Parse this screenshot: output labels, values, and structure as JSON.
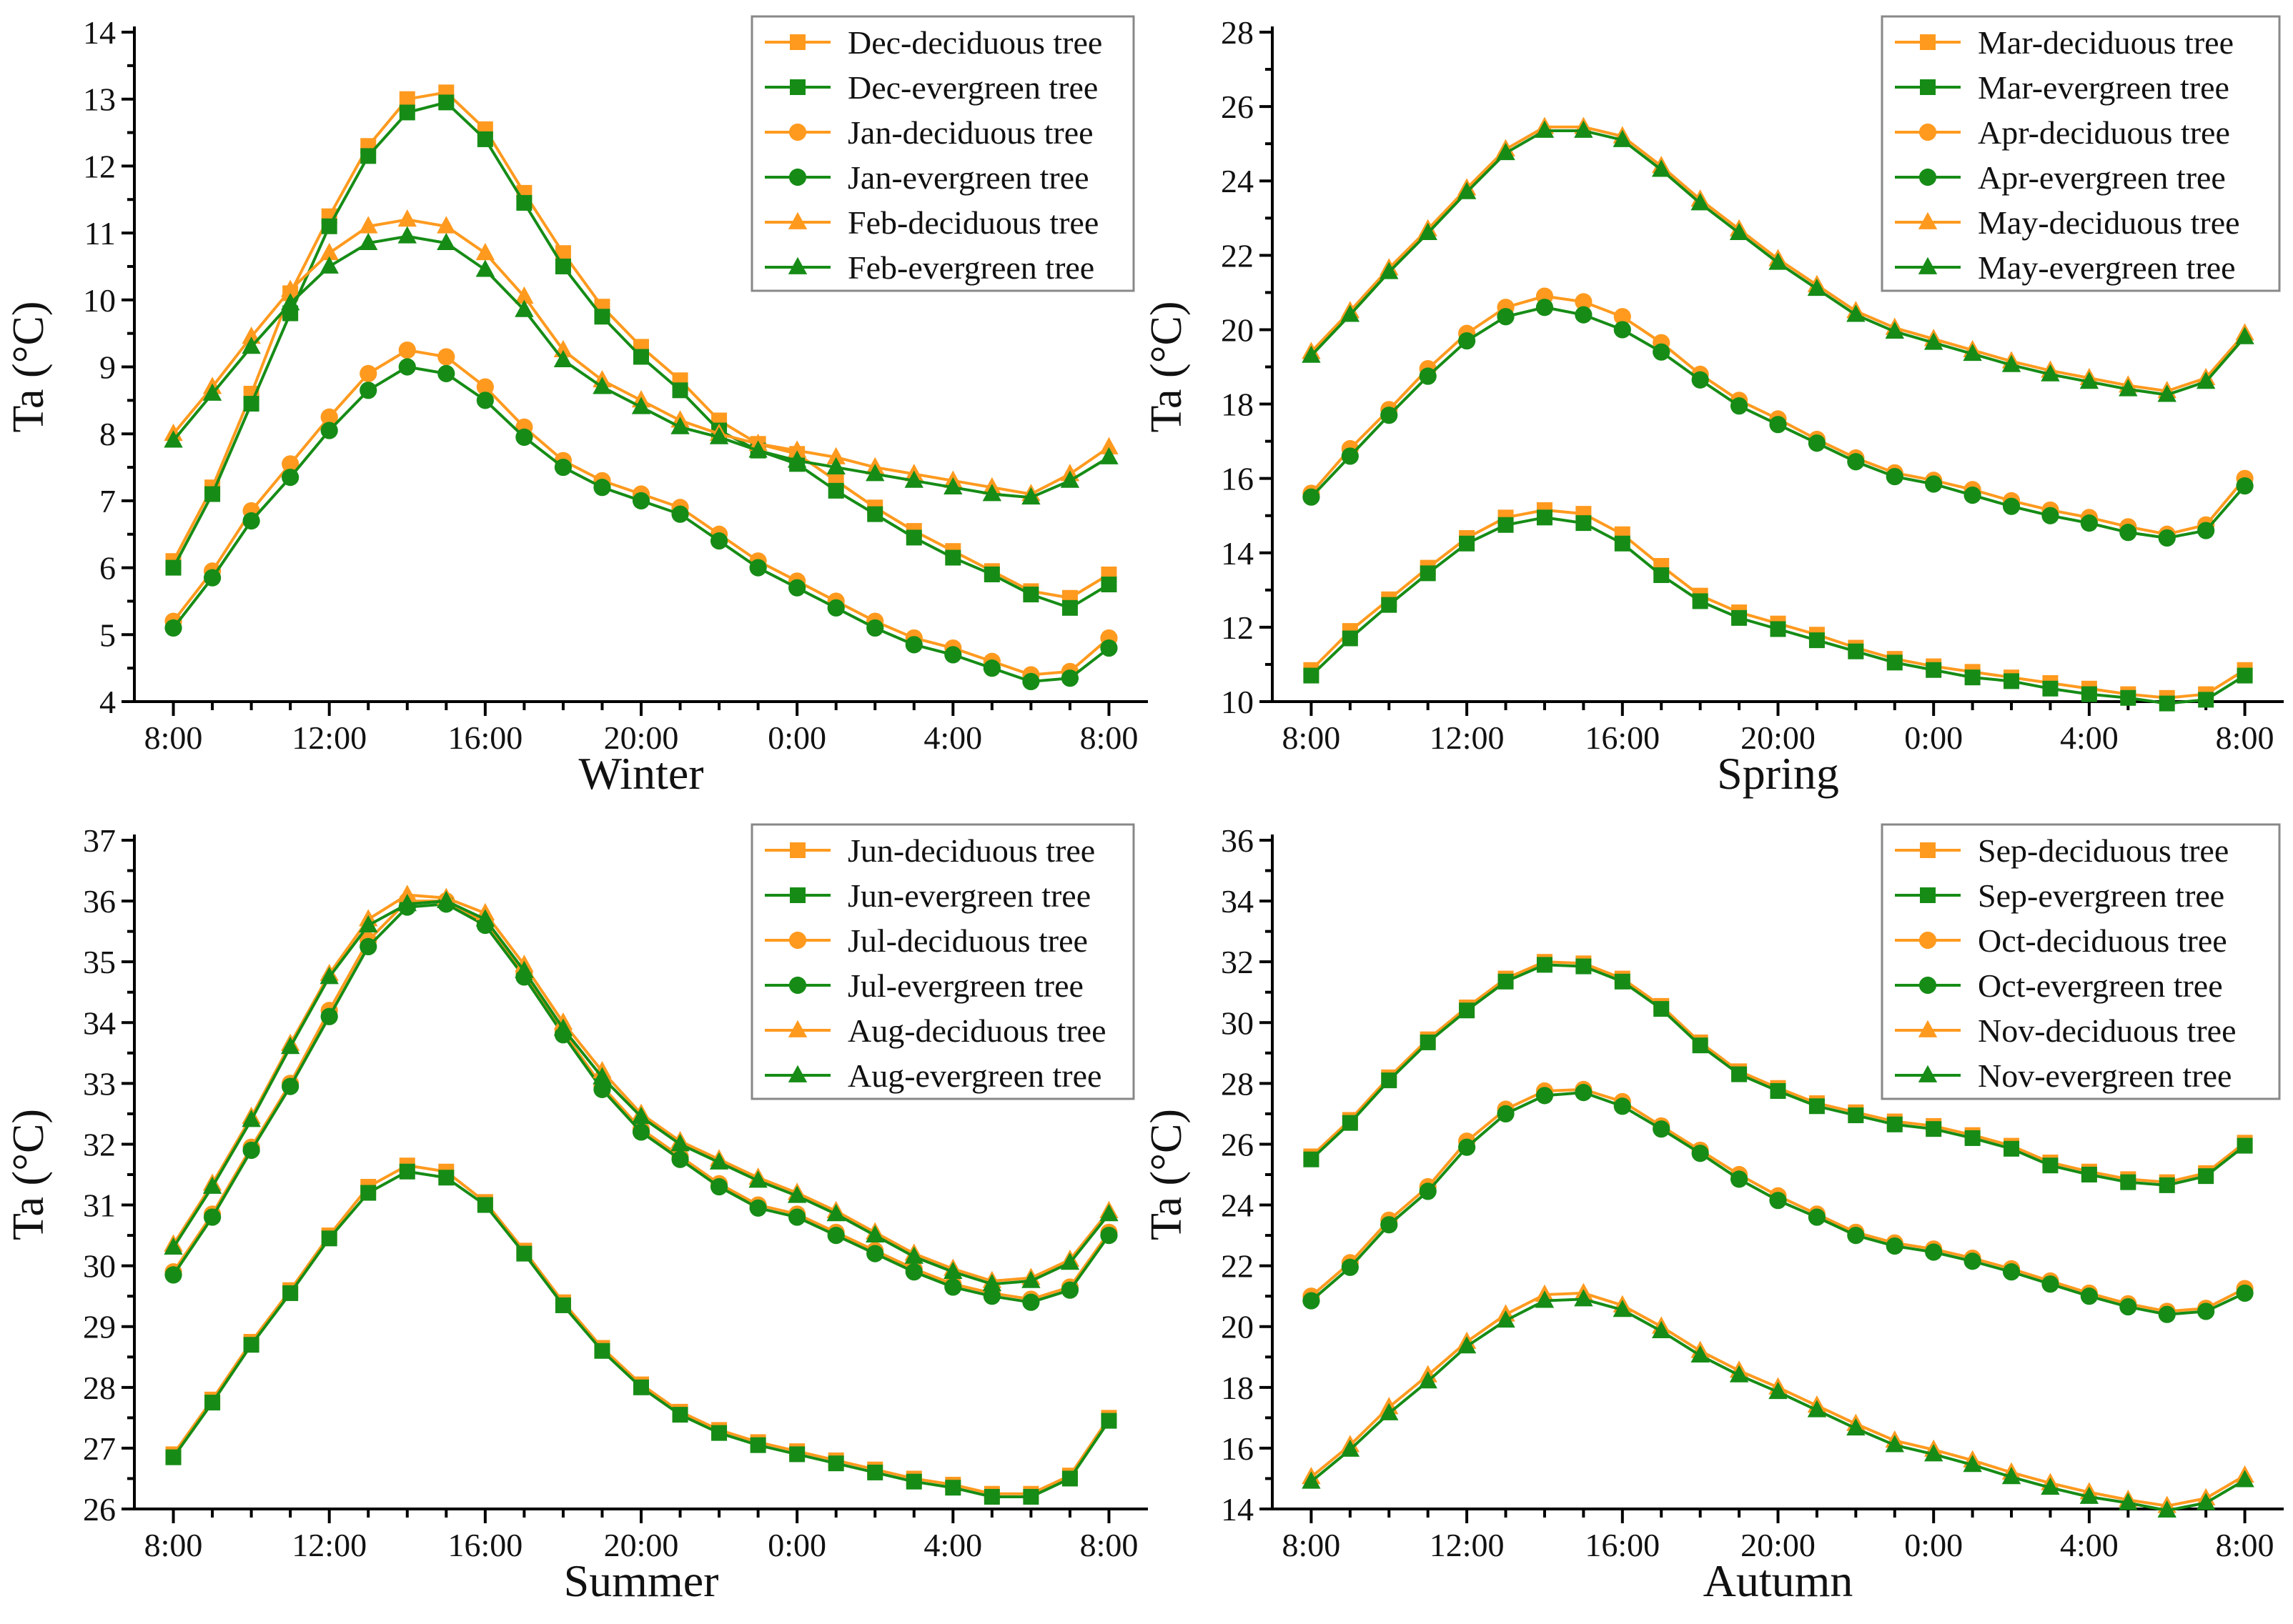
{
  "colors": {
    "deciduous": "#FF9A1F",
    "evergreen": "#168C16",
    "axis": "#000000"
  },
  "chart_data": [
    {
      "type": "line",
      "title": "",
      "xlabel": "Winter",
      "ylabel": "Ta (°C)",
      "ylim": [
        4,
        14
      ],
      "ystep": 1,
      "xticks": [
        "8:00",
        "12:00",
        "16:00",
        "20:00",
        "0:00",
        "4:00",
        "8:00"
      ],
      "x_hours": "hourly 8:00 to 8:00 next day",
      "legend": "top-right",
      "series": [
        {
          "name": "Dec-deciduous tree",
          "marker": "square",
          "kind": "deciduous",
          "values": [
            6.1,
            7.2,
            8.6,
            10.1,
            11.25,
            12.3,
            13.0,
            13.1,
            12.55,
            11.6,
            10.7,
            9.9,
            9.3,
            8.8,
            8.2,
            7.85,
            7.7,
            7.3,
            6.9,
            6.55,
            6.25,
            5.95,
            5.65,
            5.55,
            5.9
          ]
        },
        {
          "name": "Dec-evergreen tree",
          "marker": "square",
          "kind": "evergreen",
          "values": [
            6.0,
            7.1,
            8.45,
            9.8,
            11.1,
            12.15,
            12.8,
            12.95,
            12.4,
            11.45,
            10.5,
            9.75,
            9.15,
            8.65,
            8.05,
            7.75,
            7.55,
            7.15,
            6.8,
            6.45,
            6.15,
            5.9,
            5.6,
            5.4,
            5.75
          ]
        },
        {
          "name": "Jan-deciduous tree",
          "marker": "circle",
          "kind": "deciduous",
          "values": [
            5.2,
            5.95,
            6.85,
            7.55,
            8.25,
            8.9,
            9.25,
            9.15,
            8.7,
            8.1,
            7.6,
            7.3,
            7.1,
            6.9,
            6.5,
            6.1,
            5.8,
            5.5,
            5.2,
            4.95,
            4.8,
            4.6,
            4.4,
            4.45,
            4.95
          ]
        },
        {
          "name": "Jan-evergreen tree",
          "marker": "circle",
          "kind": "evergreen",
          "values": [
            5.1,
            5.85,
            6.7,
            7.35,
            8.05,
            8.65,
            9.0,
            8.9,
            8.5,
            7.95,
            7.5,
            7.2,
            7.0,
            6.8,
            6.4,
            6.0,
            5.7,
            5.4,
            5.1,
            4.85,
            4.7,
            4.5,
            4.3,
            4.35,
            4.8
          ]
        },
        {
          "name": "Feb-deciduous tree",
          "marker": "triangle",
          "kind": "deciduous",
          "values": [
            8.0,
            8.7,
            9.45,
            10.15,
            10.7,
            11.1,
            11.2,
            11.1,
            10.7,
            10.05,
            9.25,
            8.8,
            8.5,
            8.2,
            8.0,
            7.85,
            7.75,
            7.65,
            7.5,
            7.4,
            7.3,
            7.2,
            7.1,
            7.4,
            7.8
          ]
        },
        {
          "name": "Feb-evergreen tree",
          "marker": "triangle",
          "kind": "evergreen",
          "values": [
            7.9,
            8.6,
            9.3,
            9.95,
            10.5,
            10.85,
            10.95,
            10.85,
            10.45,
            9.85,
            9.1,
            8.7,
            8.4,
            8.1,
            7.95,
            7.75,
            7.6,
            7.5,
            7.4,
            7.3,
            7.2,
            7.1,
            7.05,
            7.3,
            7.65
          ]
        }
      ]
    },
    {
      "type": "line",
      "title": "",
      "xlabel": "Spring",
      "ylabel": "Ta (°C)",
      "ylim": [
        10,
        28
      ],
      "ystep": 2,
      "xticks": [
        "8:00",
        "12:00",
        "16:00",
        "20:00",
        "0:00",
        "4:00",
        "8:00"
      ],
      "legend": "top-right",
      "series": [
        {
          "name": "Mar-deciduous tree",
          "marker": "square",
          "kind": "deciduous",
          "values": [
            10.85,
            11.9,
            12.75,
            13.6,
            14.4,
            14.95,
            15.15,
            15.05,
            14.5,
            13.65,
            12.85,
            12.4,
            12.1,
            11.8,
            11.45,
            11.15,
            10.95,
            10.8,
            10.65,
            10.5,
            10.35,
            10.2,
            10.1,
            10.2,
            10.85
          ]
        },
        {
          "name": "Mar-evergreen tree",
          "marker": "square",
          "kind": "evergreen",
          "values": [
            10.7,
            11.7,
            12.6,
            13.45,
            14.25,
            14.75,
            14.95,
            14.8,
            14.25,
            13.4,
            12.7,
            12.25,
            11.95,
            11.65,
            11.35,
            11.05,
            10.85,
            10.65,
            10.55,
            10.35,
            10.2,
            10.1,
            9.95,
            10.05,
            10.7
          ]
        },
        {
          "name": "Apr-deciduous tree",
          "marker": "circle",
          "kind": "deciduous",
          "values": [
            15.6,
            16.8,
            17.85,
            18.95,
            19.9,
            20.6,
            20.9,
            20.75,
            20.35,
            19.65,
            18.8,
            18.1,
            17.6,
            17.05,
            16.55,
            16.15,
            15.95,
            15.7,
            15.4,
            15.15,
            14.95,
            14.7,
            14.5,
            14.75,
            16.0
          ]
        },
        {
          "name": "Apr-evergreen tree",
          "marker": "circle",
          "kind": "evergreen",
          "values": [
            15.5,
            16.6,
            17.7,
            18.75,
            19.7,
            20.35,
            20.6,
            20.4,
            20.0,
            19.4,
            18.65,
            17.95,
            17.45,
            16.95,
            16.45,
            16.05,
            15.85,
            15.55,
            15.25,
            15.0,
            14.8,
            14.55,
            14.4,
            14.6,
            15.8
          ]
        },
        {
          "name": "May-deciduous tree",
          "marker": "triangle",
          "kind": "deciduous",
          "values": [
            19.4,
            20.5,
            21.65,
            22.7,
            23.8,
            24.85,
            25.45,
            25.45,
            25.2,
            24.4,
            23.5,
            22.7,
            21.9,
            21.2,
            20.5,
            20.05,
            19.75,
            19.45,
            19.15,
            18.9,
            18.7,
            18.5,
            18.35,
            18.7,
            19.9
          ]
        },
        {
          "name": "May-evergreen tree",
          "marker": "triangle",
          "kind": "evergreen",
          "values": [
            19.3,
            20.4,
            21.55,
            22.6,
            23.7,
            24.75,
            25.35,
            25.35,
            25.1,
            24.3,
            23.4,
            22.6,
            21.8,
            21.1,
            20.4,
            19.95,
            19.65,
            19.35,
            19.05,
            18.8,
            18.6,
            18.4,
            18.25,
            18.6,
            19.8
          ]
        }
      ]
    },
    {
      "type": "line",
      "title": "",
      "xlabel": "Summer",
      "ylabel": "Ta (°C)",
      "ylim": [
        26,
        37
      ],
      "ystep": 1,
      "xticks": [
        "8:00",
        "12:00",
        "16:00",
        "20:00",
        "0:00",
        "4:00",
        "8:00"
      ],
      "legend": "top-right",
      "series": [
        {
          "name": "Jun-deciduous tree",
          "marker": "square",
          "kind": "deciduous",
          "values": [
            26.9,
            27.8,
            28.75,
            29.6,
            30.5,
            31.3,
            31.65,
            31.55,
            31.05,
            30.25,
            29.4,
            28.65,
            28.05,
            27.6,
            27.3,
            27.1,
            26.95,
            26.8,
            26.65,
            26.5,
            26.4,
            26.25,
            26.25,
            26.55,
            27.5
          ]
        },
        {
          "name": "Jun-evergreen tree",
          "marker": "square",
          "kind": "evergreen",
          "values": [
            26.85,
            27.75,
            28.7,
            29.55,
            30.45,
            31.2,
            31.55,
            31.45,
            31.0,
            30.2,
            29.35,
            28.6,
            28.0,
            27.55,
            27.25,
            27.05,
            26.9,
            26.75,
            26.6,
            26.45,
            26.35,
            26.2,
            26.2,
            26.5,
            27.45
          ]
        },
        {
          "name": "Jul-deciduous tree",
          "marker": "circle",
          "kind": "deciduous",
          "values": [
            29.9,
            30.85,
            31.95,
            33.0,
            34.2,
            35.35,
            36.0,
            36.0,
            35.65,
            34.8,
            33.85,
            32.95,
            32.25,
            31.8,
            31.35,
            31.0,
            30.85,
            30.55,
            30.25,
            29.95,
            29.7,
            29.55,
            29.45,
            29.65,
            30.55
          ]
        },
        {
          "name": "Jul-evergreen tree",
          "marker": "circle",
          "kind": "evergreen",
          "values": [
            29.85,
            30.8,
            31.9,
            32.95,
            34.1,
            35.25,
            35.9,
            35.95,
            35.6,
            34.75,
            33.8,
            32.9,
            32.2,
            31.75,
            31.3,
            30.95,
            30.8,
            30.5,
            30.2,
            29.9,
            29.65,
            29.5,
            29.4,
            29.6,
            30.5
          ]
        },
        {
          "name": "Aug-deciduous tree",
          "marker": "triangle",
          "kind": "deciduous",
          "values": [
            30.35,
            31.35,
            32.45,
            33.65,
            34.8,
            35.7,
            36.1,
            36.05,
            35.8,
            34.95,
            34.0,
            33.2,
            32.5,
            32.05,
            31.75,
            31.45,
            31.2,
            30.9,
            30.55,
            30.2,
            29.95,
            29.75,
            29.8,
            30.1,
            30.9
          ]
        },
        {
          "name": "Aug-evergreen tree",
          "marker": "triangle",
          "kind": "evergreen",
          "values": [
            30.3,
            31.3,
            32.4,
            33.6,
            34.75,
            35.6,
            35.95,
            36.0,
            35.7,
            34.85,
            33.9,
            33.1,
            32.45,
            32.0,
            31.7,
            31.4,
            31.15,
            30.85,
            30.5,
            30.15,
            29.9,
            29.7,
            29.75,
            30.05,
            30.85
          ]
        }
      ]
    },
    {
      "type": "line",
      "title": "",
      "xlabel": "Autumn",
      "ylabel": "Ta (°C)",
      "ylim": [
        14,
        36
      ],
      "ystep": 2,
      "xticks": [
        "8:00",
        "12:00",
        "16:00",
        "20:00",
        "0:00",
        "4:00",
        "8:00"
      ],
      "legend": "top-right",
      "series": [
        {
          "name": "Sep-deciduous tree",
          "marker": "square",
          "kind": "deciduous",
          "values": [
            25.6,
            26.8,
            28.2,
            29.45,
            30.5,
            31.45,
            32.0,
            31.95,
            31.45,
            30.55,
            29.35,
            28.4,
            27.85,
            27.35,
            27.05,
            26.75,
            26.6,
            26.3,
            25.95,
            25.4,
            25.1,
            24.85,
            24.75,
            25.05,
            26.05
          ]
        },
        {
          "name": "Sep-evergreen tree",
          "marker": "square",
          "kind": "evergreen",
          "values": [
            25.5,
            26.7,
            28.1,
            29.35,
            30.4,
            31.35,
            31.9,
            31.85,
            31.35,
            30.45,
            29.25,
            28.3,
            27.75,
            27.25,
            26.95,
            26.65,
            26.5,
            26.2,
            25.85,
            25.3,
            25.0,
            24.75,
            24.65,
            24.95,
            25.95
          ]
        },
        {
          "name": "Oct-deciduous tree",
          "marker": "circle",
          "kind": "deciduous",
          "values": [
            21.0,
            22.1,
            23.5,
            24.6,
            26.1,
            27.15,
            27.75,
            27.8,
            27.4,
            26.6,
            25.8,
            25.0,
            24.3,
            23.7,
            23.1,
            22.75,
            22.55,
            22.25,
            21.9,
            21.5,
            21.1,
            20.75,
            20.5,
            20.6,
            21.25
          ]
        },
        {
          "name": "Oct-evergreen tree",
          "marker": "circle",
          "kind": "evergreen",
          "values": [
            20.85,
            21.95,
            23.35,
            24.45,
            25.9,
            27.0,
            27.6,
            27.7,
            27.25,
            26.5,
            25.7,
            24.85,
            24.15,
            23.6,
            23.0,
            22.65,
            22.45,
            22.15,
            21.8,
            21.4,
            21.0,
            20.65,
            20.4,
            20.5,
            21.1
          ]
        },
        {
          "name": "Nov-deciduous tree",
          "marker": "triangle",
          "kind": "deciduous",
          "values": [
            15.05,
            16.1,
            17.35,
            18.4,
            19.5,
            20.4,
            21.05,
            21.1,
            20.7,
            20.0,
            19.2,
            18.55,
            18.0,
            17.4,
            16.8,
            16.25,
            15.95,
            15.6,
            15.2,
            14.85,
            14.55,
            14.3,
            14.1,
            14.35,
            15.1
          ]
        },
        {
          "name": "Nov-evergreen tree",
          "marker": "triangle",
          "kind": "evergreen",
          "values": [
            14.9,
            15.95,
            17.15,
            18.2,
            19.35,
            20.2,
            20.85,
            20.9,
            20.55,
            19.85,
            19.05,
            18.4,
            17.85,
            17.25,
            16.65,
            16.1,
            15.8,
            15.45,
            15.05,
            14.7,
            14.4,
            14.2,
            13.95,
            14.2,
            14.95
          ]
        }
      ]
    }
  ]
}
